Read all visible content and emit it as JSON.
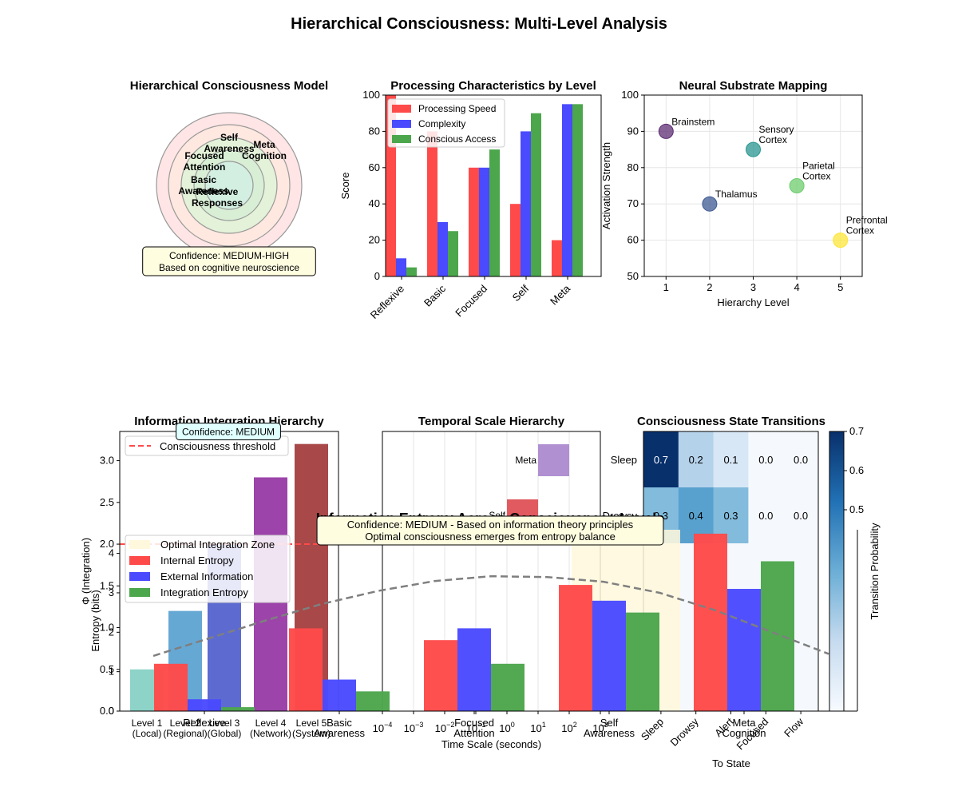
{
  "figure": {
    "title": "Hierarchical Consciousness: Multi-Level Analysis"
  },
  "colors": {
    "red": "#ff4a4a",
    "blue": "#4a4aff",
    "green": "#4ca64c",
    "axis": "#000000",
    "grid": "#e6e6e6",
    "trend": "#7f7f7f",
    "optimal_zone": "#fff8dc",
    "box_yellow": "#fffde0",
    "box_cyan": "#e0ffff"
  },
  "chart_data": [
    {
      "id": "model",
      "type": "diagram",
      "title": "Hierarchical Consciousness Model",
      "circles": [
        {
          "level": 5,
          "fill": "#ffe5e5"
        },
        {
          "level": 4,
          "fill": "#ffe8e0"
        },
        {
          "level": 3,
          "fill": "#e3f2d8"
        },
        {
          "level": 2,
          "fill": "#d8efd6"
        },
        {
          "level": 1,
          "fill": "#d3efe2"
        }
      ],
      "labels": [
        {
          "id": "self",
          "lines": [
            "Self",
            "Awareness"
          ]
        },
        {
          "id": "meta",
          "lines": [
            "Meta",
            "Cognition"
          ]
        },
        {
          "id": "focused",
          "lines": [
            "Focused",
            "Attention"
          ]
        },
        {
          "id": "basic",
          "lines": [
            "Basic",
            "Awareness"
          ]
        },
        {
          "id": "reflexive",
          "lines": [
            "Reflexive",
            "Responses"
          ]
        }
      ],
      "confidence": [
        "Confidence: MEDIUM-HIGH",
        "Based on cognitive neuroscience"
      ]
    },
    {
      "id": "processing",
      "type": "bar",
      "title": "Processing Characteristics by Level",
      "ylabel": "Score",
      "ylim": [
        0,
        100
      ],
      "yticks": [
        0,
        20,
        40,
        60,
        80,
        100
      ],
      "categories": [
        "Reflexive",
        "Basic",
        "Focused",
        "Self",
        "Meta"
      ],
      "series": [
        {
          "name": "Processing Speed",
          "color": "#ff4a4a",
          "values": [
            100,
            80,
            60,
            40,
            20
          ]
        },
        {
          "name": "Complexity",
          "color": "#4a4aff",
          "values": [
            10,
            30,
            60,
            80,
            95
          ]
        },
        {
          "name": "Conscious Access",
          "color": "#4ca64c",
          "values": [
            5,
            25,
            70,
            90,
            95
          ]
        }
      ],
      "legend": "top-left"
    },
    {
      "id": "neural",
      "type": "scatter",
      "title": "Neural Substrate Mapping",
      "xlabel": "Hierarchy Level",
      "ylabel": "Activation Strength",
      "xlim": [
        0.5,
        5.5
      ],
      "ylim": [
        50,
        100
      ],
      "xticks": [
        1,
        2,
        3,
        4,
        5
      ],
      "yticks": [
        50,
        60,
        70,
        80,
        90,
        100
      ],
      "points": [
        {
          "x": 1,
          "y": 90,
          "label": [
            "Brainstem"
          ],
          "color": "#5e2e73"
        },
        {
          "x": 2,
          "y": 70,
          "label": [
            "Thalamus"
          ],
          "color": "#3e5a93"
        },
        {
          "x": 3,
          "y": 85,
          "label": [
            "Sensory",
            "Cortex"
          ],
          "color": "#2a9690"
        },
        {
          "x": 4,
          "y": 75,
          "label": [
            "Parietal",
            "Cortex"
          ],
          "color": "#6dcc6e"
        },
        {
          "x": 5,
          "y": 60,
          "label": [
            "Prefrontal",
            "Cortex"
          ],
          "color": "#fde53a"
        }
      ]
    },
    {
      "id": "integration",
      "type": "bar",
      "title": "Information Integration Hierarchy",
      "ylabel": "Φ (Integration)",
      "ylim": [
        0,
        3.35
      ],
      "yticks": [
        0.0,
        0.5,
        1.0,
        1.5,
        2.0,
        2.5,
        3.0
      ],
      "categories": [
        "Level 1\n(Local)",
        "Level 2\n(Regional)",
        "Level 3\n(Global)",
        "Level 4\n(Network)",
        "Level 5\n(System)"
      ],
      "values": [
        0.5,
        1.2,
        2.0,
        2.8,
        3.2
      ],
      "colors": [
        "#8dd3c7",
        "#66a8d4",
        "#5d6bd1",
        "#9c44aa",
        "#a84848"
      ],
      "threshold": {
        "value": 2.0,
        "label": "Consciousness threshold"
      },
      "confidence": [
        "Confidence: MEDIUM"
      ]
    },
    {
      "id": "temporal",
      "type": "bar",
      "title": "Temporal Scale Hierarchy",
      "xlabel": "Time Scale (seconds)",
      "xscale": "log",
      "xlim": [
        -4.0,
        3.0
      ],
      "xtick_exponents": [
        -4,
        -3,
        -2,
        -1,
        0,
        1,
        2,
        3
      ],
      "bars": [
        {
          "label": "Meta",
          "start": 1.0,
          "end": 2.0,
          "color": "#b090d0"
        },
        {
          "label": "Self",
          "start": 0.0,
          "end": 1.0,
          "color": "#e05a60"
        }
      ]
    },
    {
      "id": "transitions",
      "type": "heatmap",
      "title": "Consciousness State Transitions",
      "xlabel": "To State",
      "colorbar_label": "Transition Probability",
      "columns": [
        "Sleep",
        "Drowsy",
        "Alert",
        "Focused",
        "Flow"
      ],
      "rows": [
        "Sleep",
        "Drowsy"
      ],
      "values": [
        [
          0.7,
          0.2,
          0.1,
          0.0,
          0.0
        ],
        [
          0.3,
          0.4,
          0.3,
          0.0,
          0.0
        ]
      ],
      "value_labels": [
        [
          "0.7",
          "0.2",
          "0.1",
          "0.0",
          "0.0"
        ],
        [
          "0.3",
          "0.4",
          "0.3",
          "0.0",
          "0.0"
        ]
      ],
      "cell_colors": [
        [
          "#08306b",
          "#b5d2eb",
          "#d8e7f5",
          "#f5f9fe",
          "#f5f9fe"
        ],
        [
          "#82bbdc",
          "#58a1cf",
          "#82bbdc",
          "#f5f9fe",
          "#f5f9fe"
        ]
      ],
      "colorbar_ticks": [
        "0.5",
        "0.6",
        "0.7"
      ]
    },
    {
      "id": "entropy",
      "type": "bar",
      "title": "Information Entropy Across Consciousness Levels",
      "ylabel": "Entropy (bits)",
      "ylim": [
        0,
        4.6
      ],
      "yticks": [
        0,
        1,
        2,
        3,
        4
      ],
      "categories": [
        "Reflexive",
        "Basic\nAwareness",
        "Focused\nAttention",
        "Self\nAwareness",
        "Meta\nCognition"
      ],
      "series": [
        {
          "name": "Internal Entropy",
          "color": "#ff4a4a",
          "values": [
            1.2,
            2.1,
            1.8,
            3.2,
            4.5
          ]
        },
        {
          "name": "External Information",
          "color": "#4a4aff",
          "values": [
            0.3,
            0.8,
            2.1,
            2.8,
            3.1
          ]
        },
        {
          "name": "Integration Entropy",
          "color": "#4ca64c",
          "values": [
            0.1,
            0.5,
            1.2,
            2.5,
            3.8
          ]
        }
      ],
      "trend": [
        1.4,
        1.85,
        2.3,
        2.72,
        3.05,
        3.3,
        3.42,
        3.4,
        3.28,
        3.0,
        2.55,
        2.0,
        1.45
      ],
      "optimal_zone_label": "Optimal Integration Zone",
      "confidence": [
        "Confidence: MEDIUM - Based on information theory principles",
        "Optimal consciousness emerges from entropy balance"
      ]
    }
  ]
}
